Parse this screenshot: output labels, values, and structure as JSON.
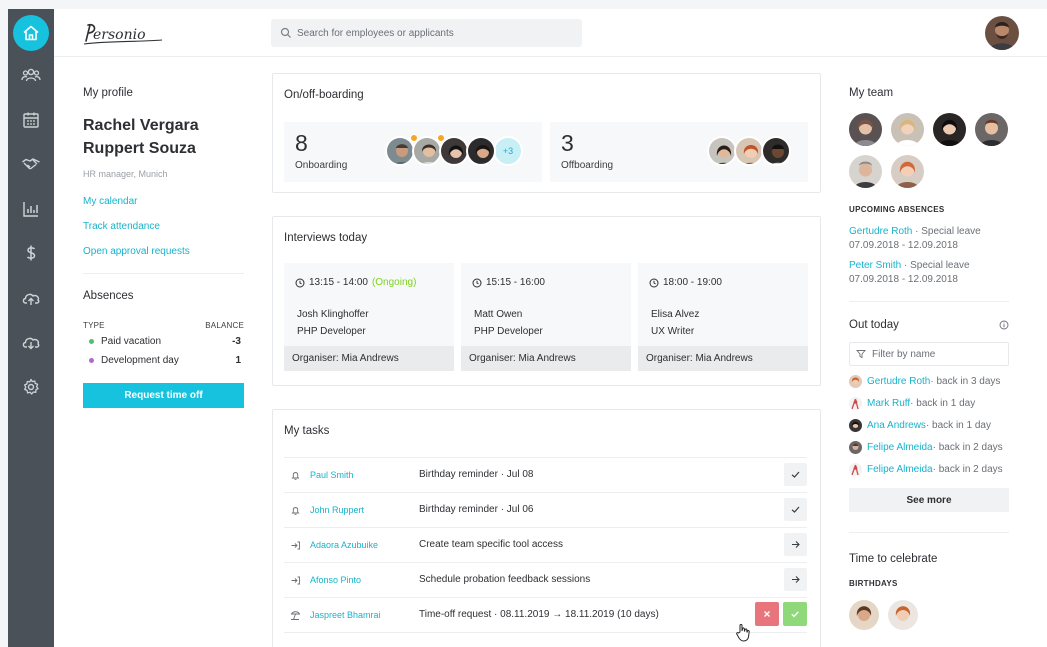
{
  "colors": {
    "sidebar": "#4a5158",
    "accent": "#17c2de",
    "link": "#17b3cc",
    "ongoing": "#7ed321",
    "reject": "#e8747c",
    "approve": "#8fd97a"
  },
  "logo": {
    "text": "Personio"
  },
  "search": {
    "placeholder": "Search for employees or applicants"
  },
  "sidebar": {
    "items": [
      {
        "name": "home-icon",
        "active": true
      },
      {
        "name": "people-icon"
      },
      {
        "name": "calendar-icon"
      },
      {
        "name": "handshake-icon"
      },
      {
        "name": "chart-icon"
      },
      {
        "name": "dollar-icon"
      },
      {
        "name": "cloud-upload-icon"
      },
      {
        "name": "cloud-download-icon"
      },
      {
        "name": "gear-icon"
      }
    ]
  },
  "profile": {
    "heading": "My profile",
    "name_line1": "Rachel Vergara",
    "name_line2": "Ruppert Souza",
    "role": "HR manager, Munich",
    "links": [
      "My  calendar",
      "Track attendance",
      "Open approval requests"
    ]
  },
  "absences": {
    "title": "Absences",
    "col_type": "TYPE",
    "col_balance": "BALANCE",
    "rows": [
      {
        "label": "Paid vacation",
        "value": "-3",
        "color": "#4cc36a"
      },
      {
        "label": "Development day",
        "value": "1",
        "color": "#b06ac9"
      }
    ],
    "button": "Request time off"
  },
  "onboarding": {
    "title": "On/off-boarding",
    "on_count": "8",
    "on_label": "Onboarding",
    "more": "+3",
    "off_count": "3",
    "off_label": "Offboarding"
  },
  "interviews": {
    "title": "Interviews today",
    "items": [
      {
        "time": "13:15 - 14:00",
        "status": "(Ongoing)",
        "name": "Josh Klinghoffer",
        "role": "PHP Developer",
        "organiser": "Organiser: Mia Andrews"
      },
      {
        "time": "15:15 - 16:00",
        "status": "",
        "name": "Matt Owen",
        "role": "PHP Developer",
        "organiser": "Organiser: Mia Andrews"
      },
      {
        "time": "18:00 - 19:00",
        "status": "",
        "name": "Elisa Alvez",
        "role": "UX Writer",
        "organiser": "Organiser: Mia Andrews"
      }
    ]
  },
  "tasks": {
    "title": "My tasks",
    "items": [
      {
        "icon": "bell-icon",
        "person": "Paul Smith",
        "desc": "Birthday reminder · Jul 08",
        "action": "check"
      },
      {
        "icon": "bell-icon",
        "person": "John Ruppert",
        "desc": "Birthday reminder · Jul 06",
        "action": "check"
      },
      {
        "icon": "login-icon",
        "person": "Adaora Azubuike",
        "desc": "Create team specific tool access",
        "action": "arrow"
      },
      {
        "icon": "login-icon",
        "person": "Afonso Pinto",
        "desc": "Schedule probation feedback sessions",
        "action": "arrow"
      },
      {
        "icon": "beach-icon",
        "person": "Jaspreet Bhamrai",
        "desc": "Time-off request · 08.11.2019 → 18.11.2019 (10 days)",
        "action": "approve"
      }
    ]
  },
  "team": {
    "title": "My team",
    "upcoming_heading": "UPCOMING ABSENCES",
    "upcoming": [
      {
        "name": "Gertudre Roth",
        "type": " · Special leave",
        "dates": "07.09.2018 - 12.09.2018"
      },
      {
        "name": "Peter Smith",
        "type": " · Special leave",
        "dates": "07.09.2018 - 12.09.2018"
      }
    ]
  },
  "out_today": {
    "title": "Out today",
    "filter_placeholder": "Filter by name",
    "items": [
      {
        "name": "Gertudre Roth",
        "status": " · back in 3 days"
      },
      {
        "name": "Mark Ruff",
        "status": " · back in 1 day"
      },
      {
        "name": "Ana Andrews",
        "status": " · back in 1 day"
      },
      {
        "name": "Felipe Almeida",
        "status": " · back in 2 days"
      },
      {
        "name": "Felipe Almeida",
        "status": " · back in 2 days"
      }
    ],
    "see_more": "See more"
  },
  "celebrate": {
    "title": "Time to celebrate",
    "birthdays": "BIRTHDAYS"
  }
}
